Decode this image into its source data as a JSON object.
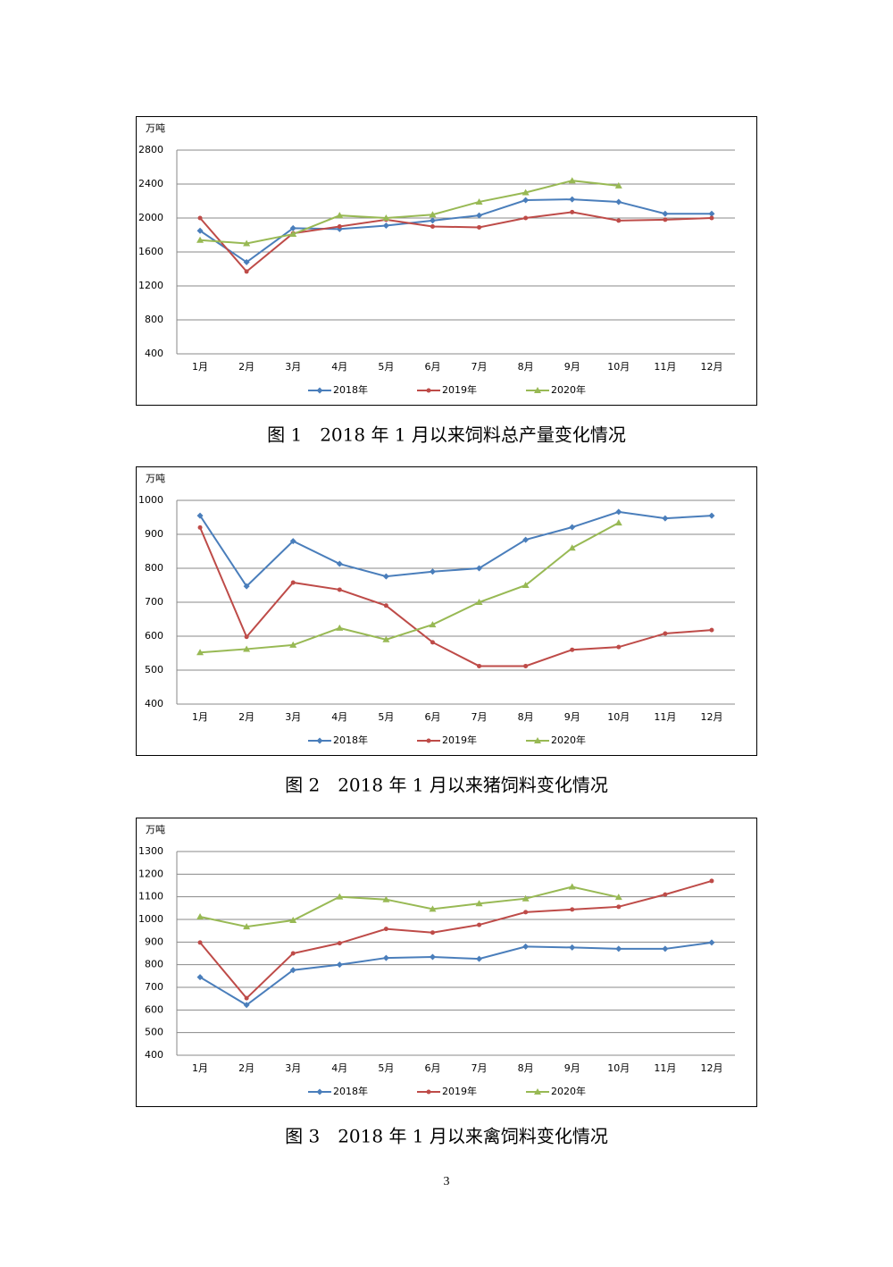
{
  "chart_data": [
    {
      "type": "line",
      "title": "图 1　2018 年 1 月以来饲料总产量变化情况",
      "y_label": "万吨",
      "categories": [
        "1月",
        "2月",
        "3月",
        "4月",
        "5月",
        "6月",
        "7月",
        "8月",
        "9月",
        "10月",
        "11月",
        "12月"
      ],
      "series": [
        {
          "name": "2018年",
          "color": "#4a7ebb",
          "marker": "diamond",
          "values": [
            1850,
            1480,
            1880,
            1870,
            1910,
            1970,
            2030,
            2210,
            2220,
            2190,
            2050,
            2050
          ]
        },
        {
          "name": "2019年",
          "color": "#be4b48",
          "marker": "circle",
          "values": [
            2000,
            1370,
            1820,
            1900,
            1980,
            1900,
            1890,
            2000,
            2070,
            1970,
            1980,
            2000
          ]
        },
        {
          "name": "2020年",
          "color": "#98b954",
          "marker": "triangle",
          "values": [
            1740,
            1700,
            1810,
            2030,
            2000,
            2040,
            2190,
            2300,
            2440,
            2380,
            null,
            null
          ]
        }
      ],
      "ylim": [
        400,
        2800
      ],
      "yticks": [
        400,
        800,
        1200,
        1600,
        2000,
        2400,
        2800
      ],
      "grid": true,
      "legend": "bottom"
    },
    {
      "type": "line",
      "title": "图 2　2018 年 1 月以来猪饲料变化情况",
      "y_label": "万吨",
      "categories": [
        "1月",
        "2月",
        "3月",
        "4月",
        "5月",
        "6月",
        "7月",
        "8月",
        "9月",
        "10月",
        "11月",
        "12月"
      ],
      "series": [
        {
          "name": "2018年",
          "color": "#4a7ebb",
          "marker": "diamond",
          "values": [
            955,
            747,
            880,
            813,
            776,
            790,
            800,
            884,
            921,
            966,
            947,
            955
          ]
        },
        {
          "name": "2019年",
          "color": "#be4b48",
          "marker": "circle",
          "values": [
            920,
            598,
            758,
            737,
            690,
            582,
            512,
            512,
            560,
            568,
            608,
            618
          ]
        },
        {
          "name": "2020年",
          "color": "#98b954",
          "marker": "triangle",
          "values": [
            552,
            562,
            574,
            624,
            590,
            634,
            700,
            750,
            860,
            934,
            null,
            null
          ]
        }
      ],
      "ylim": [
        400,
        1000
      ],
      "yticks": [
        400,
        500,
        600,
        700,
        800,
        900,
        1000
      ],
      "grid": true,
      "legend": "bottom"
    },
    {
      "type": "line",
      "title": "图 3　2018 年 1 月以来禽饲料变化情况",
      "y_label": "万吨",
      "categories": [
        "1月",
        "2月",
        "3月",
        "4月",
        "5月",
        "6月",
        "7月",
        "8月",
        "9月",
        "10月",
        "11月",
        "12月"
      ],
      "series": [
        {
          "name": "2018年",
          "color": "#4a7ebb",
          "marker": "diamond",
          "values": [
            745,
            622,
            776,
            800,
            830,
            834,
            826,
            880,
            876,
            870,
            870,
            898
          ]
        },
        {
          "name": "2019年",
          "color": "#be4b48",
          "marker": "circle",
          "values": [
            898,
            652,
            850,
            895,
            958,
            942,
            976,
            1032,
            1044,
            1056,
            1110,
            1170
          ]
        },
        {
          "name": "2020年",
          "color": "#98b954",
          "marker": "triangle",
          "values": [
            1012,
            968,
            996,
            1100,
            1088,
            1046,
            1070,
            1092,
            1144,
            1098,
            null,
            null
          ]
        }
      ],
      "ylim": [
        400,
        1300
      ],
      "yticks": [
        400,
        500,
        600,
        700,
        800,
        900,
        1000,
        1100,
        1200,
        1300
      ],
      "grid": true,
      "legend": "bottom"
    }
  ],
  "page_number": "3"
}
